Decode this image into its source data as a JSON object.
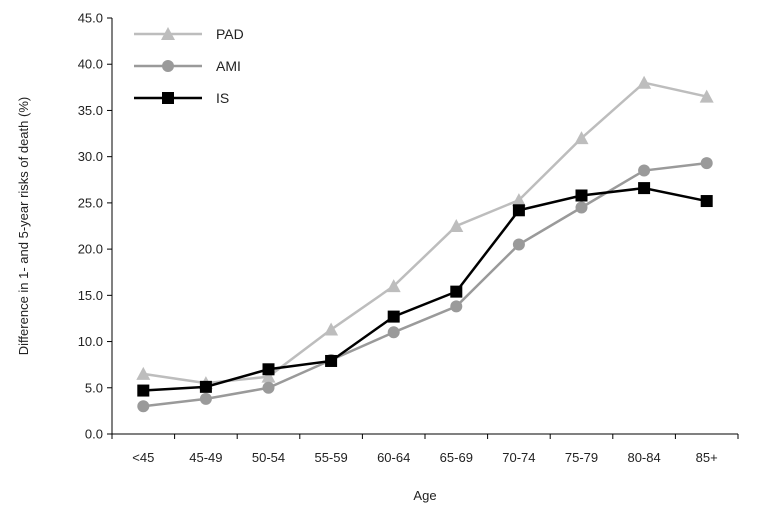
{
  "chart_data": {
    "type": "line",
    "xlabel": "Age",
    "ylabel": "Difference in 1- and 5-year risks of death (%)",
    "categories": [
      "<45",
      "45-49",
      "50-54",
      "55-59",
      "60-64",
      "65-69",
      "70-74",
      "75-79",
      "80-84",
      "85+"
    ],
    "y_ticks": [
      "0.0",
      "5.0",
      "10.0",
      "15.0",
      "20.0",
      "25.0",
      "30.0",
      "35.0",
      "40.0",
      "45.0"
    ],
    "ylim": [
      0,
      45
    ],
    "legend_position": "top-left",
    "grid": false,
    "series": [
      {
        "name": "PAD",
        "marker": "triangle",
        "color": "#bdbdbd",
        "values": [
          6.5,
          5.5,
          6.2,
          11.3,
          16.0,
          22.5,
          25.3,
          32.0,
          38.0,
          36.5
        ]
      },
      {
        "name": "AMI",
        "marker": "circle",
        "color": "#9a9a9a",
        "values": [
          3.0,
          3.8,
          5.0,
          8.0,
          11.0,
          13.8,
          20.5,
          24.5,
          28.5,
          29.3
        ]
      },
      {
        "name": "IS",
        "marker": "square",
        "color": "#000000",
        "values": [
          4.7,
          5.1,
          7.0,
          7.9,
          12.7,
          15.4,
          24.2,
          25.8,
          26.6,
          25.2
        ]
      }
    ]
  }
}
